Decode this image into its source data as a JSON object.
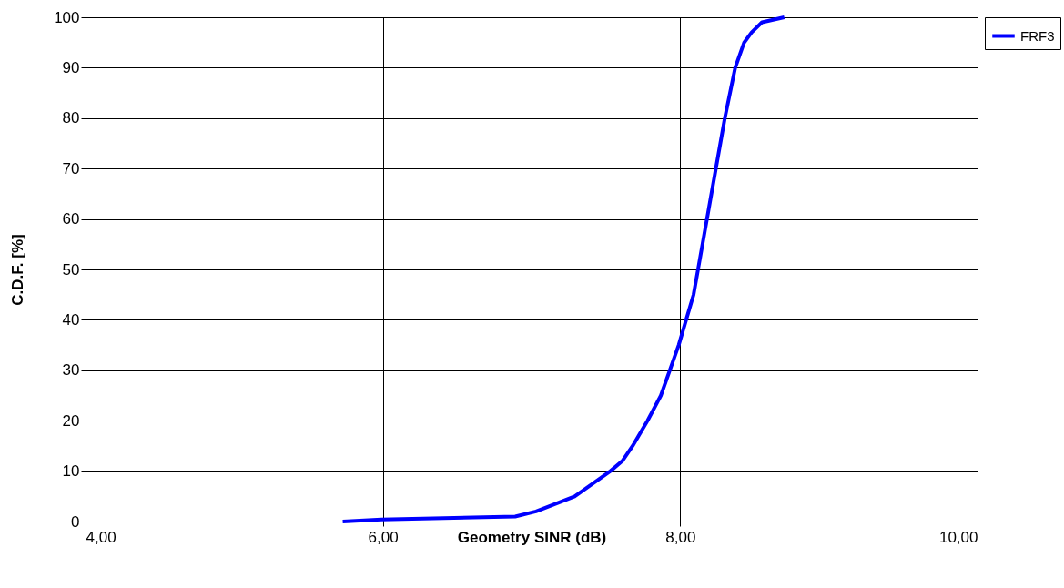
{
  "chart_data": {
    "type": "line",
    "xlabel": "Geometry SINR (dB)",
    "ylabel": "C.D.F. [%]",
    "xlim": [
      4,
      10
    ],
    "xticks": [
      {
        "value": 4,
        "label": "4,00"
      },
      {
        "value": 6,
        "label": "6,00"
      },
      {
        "value": 8,
        "label": "8,00"
      },
      {
        "value": 10,
        "label": "10,00"
      }
    ],
    "ylim": [
      0,
      100
    ],
    "yticks": [
      0,
      10,
      20,
      30,
      40,
      50,
      60,
      70,
      80,
      90,
      100
    ],
    "grid": true,
    "legend": "right",
    "marker": "none",
    "line_style": "solid",
    "series": [
      {
        "name": "FRF3",
        "color": "#0000ff",
        "x": [
          5.73,
          5.99,
          6.89,
          7.03,
          7.29,
          7.53,
          7.61,
          7.68,
          7.78,
          7.87,
          7.93,
          7.99,
          8.04,
          8.09,
          8.12,
          8.18,
          8.24,
          8.3,
          8.37,
          8.43,
          8.48,
          8.55,
          8.7
        ],
        "values": [
          0,
          0.4,
          1,
          2,
          5,
          10,
          12,
          15,
          20,
          25,
          30,
          35,
          40,
          45,
          50,
          60,
          70,
          80,
          90,
          95,
          97,
          99,
          100
        ]
      }
    ]
  }
}
